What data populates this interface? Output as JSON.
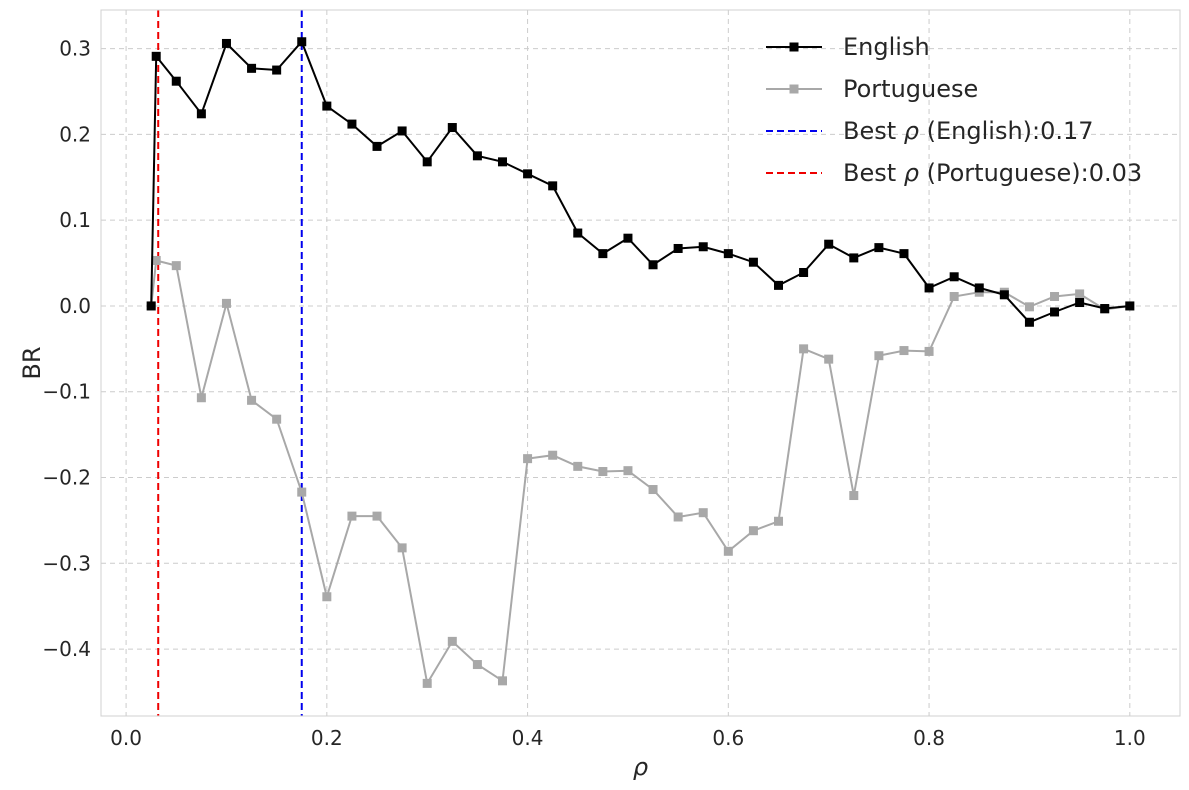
{
  "chart_data": {
    "type": "line",
    "xlabel": "ρ",
    "ylabel": "BR",
    "xlim": [
      -0.025,
      1.05
    ],
    "ylim": [
      -0.478,
      0.345
    ],
    "xticks": [
      0.0,
      0.2,
      0.4,
      0.6,
      0.8,
      1.0
    ],
    "xtick_labels": [
      "0.0",
      "0.2",
      "0.4",
      "0.6",
      "0.8",
      "1.0"
    ],
    "yticks": [
      0.3,
      0.2,
      0.1,
      0.0,
      -0.1,
      -0.2,
      -0.3,
      -0.4
    ],
    "ytick_labels": [
      "0.3",
      "0.2",
      "0.1",
      "0.0",
      "−0.1",
      "−0.2",
      "−0.3",
      "−0.4"
    ],
    "grid": true,
    "legend_position": "top-right",
    "x": [
      0.025,
      0.03,
      0.05,
      0.075,
      0.1,
      0.125,
      0.15,
      0.175,
      0.2,
      0.225,
      0.25,
      0.275,
      0.3,
      0.325,
      0.35,
      0.375,
      0.4,
      0.425,
      0.45,
      0.475,
      0.5,
      0.525,
      0.55,
      0.575,
      0.6,
      0.625,
      0.65,
      0.675,
      0.7,
      0.725,
      0.75,
      0.775,
      0.8,
      0.825,
      0.85,
      0.875,
      0.9,
      0.925,
      0.95,
      0.975,
      1.0
    ],
    "series": [
      {
        "name": "English",
        "color": "#000000",
        "marker": "square",
        "values": [
          0.0,
          0.291,
          0.262,
          0.224,
          0.306,
          0.277,
          0.275,
          0.308,
          0.233,
          0.212,
          0.186,
          0.204,
          0.168,
          0.208,
          0.175,
          0.168,
          0.154,
          0.14,
          0.085,
          0.061,
          0.079,
          0.048,
          0.067,
          0.069,
          0.061,
          0.051,
          0.024,
          0.039,
          0.072,
          0.056,
          0.068,
          0.061,
          0.021,
          0.034,
          0.021,
          0.013,
          -0.019,
          -0.007,
          0.004,
          -0.003,
          0.0
        ]
      },
      {
        "name": "Portuguese",
        "color": "#a8a8a8",
        "marker": "square",
        "values": [
          0.0,
          0.053,
          0.047,
          -0.107,
          0.003,
          -0.11,
          -0.132,
          -0.217,
          -0.339,
          -0.245,
          -0.245,
          -0.282,
          -0.44,
          -0.391,
          -0.418,
          -0.437,
          -0.178,
          -0.174,
          -0.187,
          -0.193,
          -0.192,
          -0.214,
          -0.246,
          -0.241,
          -0.286,
          -0.262,
          -0.251,
          -0.05,
          -0.062,
          -0.221,
          -0.058,
          -0.052,
          -0.053,
          0.011,
          0.016,
          0.016,
          -0.001,
          0.011,
          0.014,
          -0.004,
          0.0
        ]
      }
    ],
    "reference_lines": [
      {
        "label_prefix": "Best ",
        "label_symbol": "ρ",
        "label_suffix": " (English):0.17",
        "x": 0.175,
        "color": "#0000ee"
      },
      {
        "label_prefix": "Best ",
        "label_symbol": "ρ",
        "label_suffix": " (Portuguese):0.03",
        "x": 0.032,
        "color": "#ee0000"
      }
    ]
  }
}
